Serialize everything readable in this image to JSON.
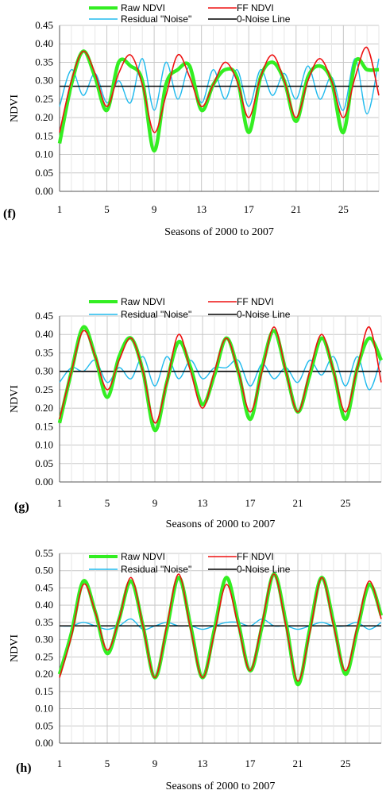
{
  "chart_data": [
    {
      "type": "line",
      "panel_label": "(f)",
      "xlabel": "Seasons of 2000 to 2007",
      "ylabel": "NDVI",
      "xlim": [
        1,
        28
      ],
      "xticks": [
        1,
        5,
        9,
        13,
        17,
        21,
        25
      ],
      "ylim": [
        0,
        0.45
      ],
      "yticks": [
        0.0,
        0.05,
        0.1,
        0.15,
        0.2,
        0.25,
        0.3,
        0.35,
        0.4,
        0.45
      ],
      "grid": true,
      "legend_position": "top",
      "series": [
        {
          "name": "Raw NDVI",
          "color": "#33ee22",
          "x": [
            1,
            2,
            3,
            4,
            5,
            6,
            7,
            8,
            9,
            10,
            11,
            12,
            13,
            14,
            15,
            16,
            17,
            18,
            19,
            20,
            21,
            22,
            23,
            24,
            25,
            26,
            27,
            28
          ],
          "y": [
            0.13,
            0.29,
            0.38,
            0.31,
            0.22,
            0.35,
            0.34,
            0.3,
            0.11,
            0.29,
            0.33,
            0.34,
            0.22,
            0.29,
            0.33,
            0.31,
            0.16,
            0.31,
            0.35,
            0.3,
            0.19,
            0.31,
            0.34,
            0.3,
            0.16,
            0.35,
            0.33,
            0.33
          ]
        },
        {
          "name": "FF NDVI",
          "color": "#ee1111",
          "x": [
            1,
            2,
            3,
            4,
            5,
            6,
            7,
            8,
            9,
            10,
            11,
            12,
            13,
            14,
            15,
            16,
            17,
            18,
            19,
            20,
            21,
            22,
            23,
            24,
            25,
            26,
            27,
            28
          ],
          "y": [
            0.16,
            0.3,
            0.38,
            0.32,
            0.23,
            0.32,
            0.37,
            0.29,
            0.16,
            0.26,
            0.37,
            0.31,
            0.23,
            0.29,
            0.35,
            0.3,
            0.2,
            0.31,
            0.37,
            0.3,
            0.2,
            0.3,
            0.36,
            0.3,
            0.2,
            0.31,
            0.39,
            0.26
          ]
        },
        {
          "name": "Residual \"Noise\"",
          "color": "#22bbee",
          "x": [
            1,
            2,
            3,
            4,
            5,
            6,
            7,
            8,
            9,
            10,
            11,
            12,
            13,
            14,
            15,
            16,
            17,
            18,
            19,
            20,
            21,
            22,
            23,
            24,
            25,
            26,
            27,
            28
          ],
          "y": [
            0.23,
            0.33,
            0.26,
            0.32,
            0.24,
            0.3,
            0.24,
            0.36,
            0.22,
            0.35,
            0.25,
            0.34,
            0.24,
            0.33,
            0.25,
            0.33,
            0.23,
            0.33,
            0.26,
            0.32,
            0.25,
            0.34,
            0.25,
            0.31,
            0.22,
            0.36,
            0.21,
            0.36
          ]
        },
        {
          "name": "0-Noise Line",
          "color": "#000000",
          "x": [
            1,
            28
          ],
          "y": [
            0.285,
            0.285
          ]
        }
      ]
    },
    {
      "type": "line",
      "panel_label": "(g)",
      "xlabel": "Seasons of 2000 to 2007",
      "ylabel": "NDVI",
      "xlim": [
        1,
        28
      ],
      "xticks": [
        1,
        5,
        9,
        13,
        17,
        21,
        25
      ],
      "ylim": [
        0,
        0.45
      ],
      "yticks": [
        0.0,
        0.05,
        0.1,
        0.15,
        0.2,
        0.25,
        0.3,
        0.35,
        0.4,
        0.45
      ],
      "grid": true,
      "legend_position": "top",
      "series": [
        {
          "name": "Raw NDVI",
          "color": "#33ee22",
          "x": [
            1,
            2,
            3,
            4,
            5,
            6,
            7,
            8,
            9,
            10,
            11,
            12,
            13,
            14,
            15,
            16,
            17,
            18,
            19,
            20,
            21,
            22,
            23,
            24,
            25,
            26,
            27,
            28
          ],
          "y": [
            0.16,
            0.3,
            0.42,
            0.34,
            0.23,
            0.34,
            0.39,
            0.3,
            0.14,
            0.27,
            0.38,
            0.31,
            0.21,
            0.29,
            0.39,
            0.3,
            0.17,
            0.31,
            0.41,
            0.3,
            0.19,
            0.29,
            0.39,
            0.3,
            0.17,
            0.31,
            0.39,
            0.33
          ]
        },
        {
          "name": "FF NDVI",
          "color": "#ee1111",
          "x": [
            1,
            2,
            3,
            4,
            5,
            6,
            7,
            8,
            9,
            10,
            11,
            12,
            13,
            14,
            15,
            16,
            17,
            18,
            19,
            20,
            21,
            22,
            23,
            24,
            25,
            26,
            27,
            28
          ],
          "y": [
            0.17,
            0.3,
            0.41,
            0.34,
            0.25,
            0.33,
            0.39,
            0.3,
            0.16,
            0.27,
            0.4,
            0.3,
            0.2,
            0.3,
            0.39,
            0.3,
            0.19,
            0.3,
            0.42,
            0.3,
            0.19,
            0.3,
            0.4,
            0.3,
            0.19,
            0.31,
            0.42,
            0.27
          ]
        },
        {
          "name": "Residual \"Noise\"",
          "color": "#22bbee",
          "x": [
            1,
            2,
            3,
            4,
            5,
            6,
            7,
            8,
            9,
            10,
            11,
            12,
            13,
            14,
            15,
            16,
            17,
            18,
            19,
            20,
            21,
            22,
            23,
            24,
            25,
            26,
            27,
            28
          ],
          "y": [
            0.27,
            0.31,
            0.3,
            0.33,
            0.27,
            0.31,
            0.28,
            0.34,
            0.26,
            0.34,
            0.28,
            0.33,
            0.28,
            0.31,
            0.31,
            0.33,
            0.26,
            0.32,
            0.28,
            0.31,
            0.27,
            0.33,
            0.29,
            0.34,
            0.26,
            0.34,
            0.25,
            0.34
          ]
        },
        {
          "name": "0-Noise Line",
          "color": "#000000",
          "x": [
            1,
            28
          ],
          "y": [
            0.3,
            0.3
          ]
        }
      ]
    },
    {
      "type": "line",
      "panel_label": "(h)",
      "xlabel": "Seasons of 2000 to 2007",
      "ylabel": "NDVI",
      "xlim": [
        1,
        28
      ],
      "xticks": [
        1,
        5,
        9,
        13,
        17,
        21,
        25
      ],
      "ylim": [
        0,
        0.55
      ],
      "yticks": [
        0.0,
        0.05,
        0.1,
        0.15,
        0.2,
        0.25,
        0.3,
        0.35,
        0.4,
        0.45,
        0.5,
        0.55
      ],
      "grid": true,
      "legend_position": "top",
      "series": [
        {
          "name": "Raw NDVI",
          "color": "#33ee22",
          "x": [
            1,
            2,
            3,
            4,
            5,
            6,
            7,
            8,
            9,
            10,
            11,
            12,
            13,
            14,
            15,
            16,
            17,
            18,
            19,
            20,
            21,
            22,
            23,
            24,
            25,
            26,
            27,
            28
          ],
          "y": [
            0.2,
            0.32,
            0.47,
            0.38,
            0.26,
            0.36,
            0.47,
            0.34,
            0.19,
            0.33,
            0.48,
            0.34,
            0.19,
            0.33,
            0.48,
            0.35,
            0.21,
            0.34,
            0.49,
            0.35,
            0.17,
            0.33,
            0.48,
            0.35,
            0.2,
            0.33,
            0.46,
            0.37
          ]
        },
        {
          "name": "FF NDVI",
          "color": "#ee1111",
          "x": [
            1,
            2,
            3,
            4,
            5,
            6,
            7,
            8,
            9,
            10,
            11,
            12,
            13,
            14,
            15,
            16,
            17,
            18,
            19,
            20,
            21,
            22,
            23,
            24,
            25,
            26,
            27,
            28
          ],
          "y": [
            0.19,
            0.31,
            0.46,
            0.38,
            0.27,
            0.36,
            0.48,
            0.34,
            0.19,
            0.34,
            0.49,
            0.33,
            0.19,
            0.32,
            0.46,
            0.34,
            0.21,
            0.35,
            0.49,
            0.34,
            0.18,
            0.32,
            0.48,
            0.34,
            0.21,
            0.34,
            0.47,
            0.36
          ]
        },
        {
          "name": "Residual \"Noise\"",
          "color": "#22bbee",
          "x": [
            1,
            2,
            3,
            4,
            5,
            6,
            7,
            8,
            9,
            10,
            11,
            12,
            13,
            14,
            15,
            16,
            17,
            18,
            19,
            20,
            21,
            22,
            23,
            24,
            25,
            26,
            27,
            28
          ],
          "y": [
            0.34,
            0.34,
            0.35,
            0.34,
            0.33,
            0.34,
            0.36,
            0.33,
            0.34,
            0.35,
            0.34,
            0.34,
            0.33,
            0.34,
            0.35,
            0.35,
            0.34,
            0.36,
            0.34,
            0.34,
            0.33,
            0.34,
            0.35,
            0.34,
            0.34,
            0.35,
            0.33,
            0.35
          ]
        },
        {
          "name": "0-Noise Line",
          "color": "#000000",
          "x": [
            1,
            28
          ],
          "y": [
            0.34,
            0.34
          ]
        }
      ]
    }
  ]
}
